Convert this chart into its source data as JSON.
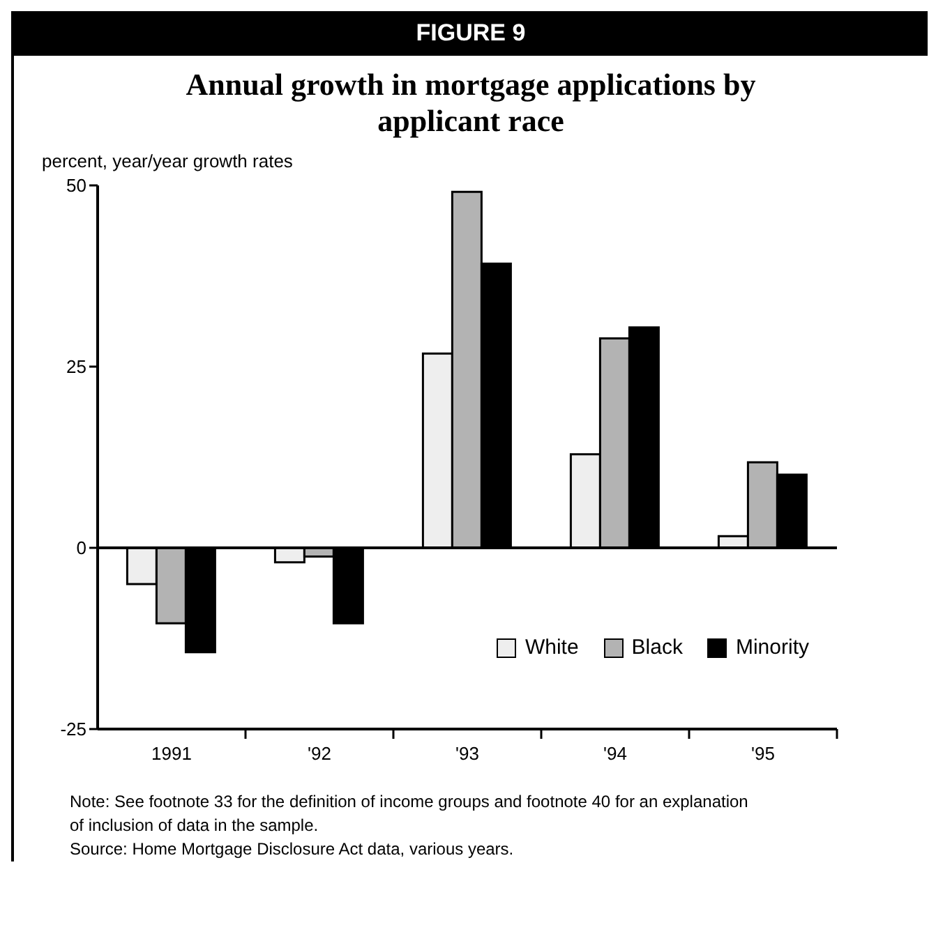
{
  "chart_data": {
    "type": "bar",
    "title": "FIGURE 9",
    "subtitle": "Annual growth in mortgage applications by applicant race",
    "ylabel": "percent, year/year growth rates",
    "categories": [
      "1991",
      "'92",
      "'93",
      "'94",
      "'95"
    ],
    "series": [
      {
        "name": "White",
        "color": "#eeeeee",
        "values": [
          -5,
          -2,
          26.8,
          12.9,
          1.6
        ]
      },
      {
        "name": "Black",
        "color": "#b3b3b3",
        "values": [
          -10.4,
          -1.2,
          49.1,
          28.9,
          11.8
        ]
      },
      {
        "name": "Minority",
        "color": "#000000",
        "values": [
          -14.4,
          -10.4,
          39.2,
          30.4,
          10.1
        ]
      }
    ],
    "ylim": [
      -25,
      50
    ],
    "yticks": [
      -25,
      0,
      25,
      50
    ],
    "grid": false,
    "legend": "bottom right",
    "ref_lines": [
      {
        "axis": "y",
        "value": 0,
        "color": "#000000"
      }
    ],
    "annotations": [
      "Note: See footnote 33 for the definition of income groups and footnote 40 for an explanation of inclusion of data in the sample.",
      "Source: Home Mortgage Disclosure Act data, various years."
    ]
  }
}
